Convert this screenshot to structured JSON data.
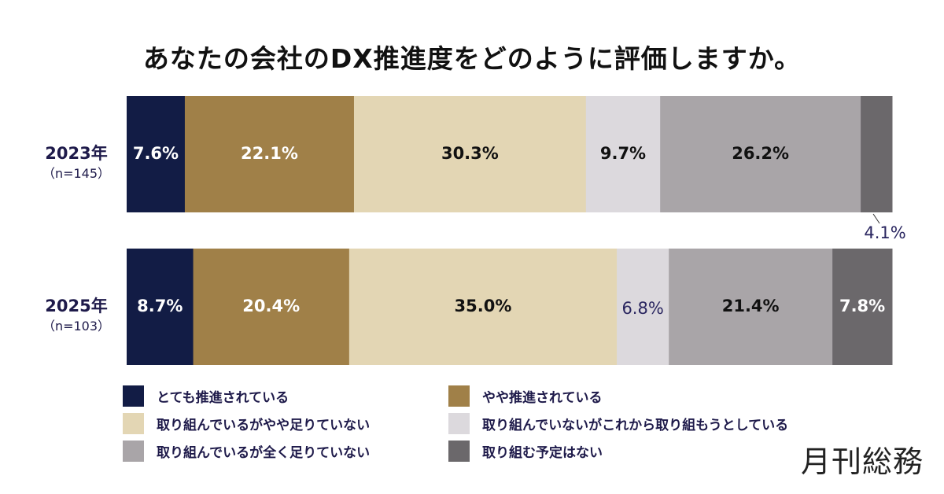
{
  "chart_data": {
    "type": "bar",
    "orientation": "horizontal",
    "stacked": true,
    "title": "あなたの会社のDX推進度をどのように評価しますか。",
    "categories": [
      {
        "label": "2023年",
        "sub": "（n=145）"
      },
      {
        "label": "2025年",
        "sub": "（n=103）"
      }
    ],
    "series": [
      {
        "name": "とても推進されている",
        "color": "#121c45",
        "values": [
          7.6,
          8.7
        ],
        "labels": [
          "7.6%",
          "8.7%"
        ]
      },
      {
        "name": "やや推進されている",
        "color": "#a08048",
        "values": [
          22.1,
          20.4
        ],
        "labels": [
          "22.1%",
          "20.4%"
        ]
      },
      {
        "name": "取り組んでいるがやや足りていない",
        "color": "#e3d6b4",
        "values": [
          30.3,
          35.0
        ],
        "labels": [
          "30.3%",
          "35.0%"
        ]
      },
      {
        "name": "取り組んでいないがこれから取り組もうとしている",
        "color": "#dcd9dd",
        "values": [
          9.7,
          6.8
        ],
        "labels": [
          "9.7%",
          "6.8%"
        ]
      },
      {
        "name": "取り組んでいるが全く足りていない",
        "color": "#a9a5a8",
        "values": [
          26.2,
          21.4
        ],
        "labels": [
          "26.2%",
          "21.4%"
        ]
      },
      {
        "name": "取り組む予定はない",
        "color": "#6b686b",
        "values": [
          4.1,
          7.8
        ],
        "labels": [
          "4.1%",
          "7.8%"
        ],
        "label_position": [
          "outside-below",
          "inside"
        ]
      }
    ],
    "legend_order": [
      0,
      1,
      2,
      3,
      4,
      5
    ],
    "legend": "bottom",
    "xlim": [
      0,
      100
    ],
    "unit": "%"
  },
  "brand": {
    "logo": "月刊総務"
  }
}
